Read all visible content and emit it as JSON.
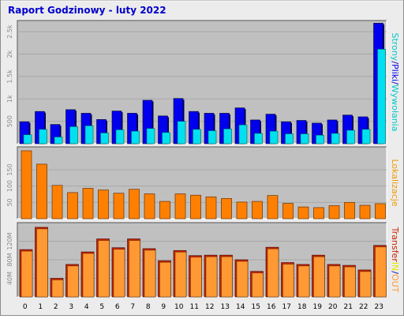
{
  "title": "Raport Godzinowy -  luty 2022",
  "colors": {
    "frame_bg": "#ececec",
    "plot_bg": "#c0c0c0",
    "title": "#0000cc",
    "strony": "#0000ee",
    "pliki": "#00e0f0",
    "wywolania": "#00c8c8",
    "lokalizacje": "#ff8000",
    "transfer": "#cc2200",
    "in": "#e8e800",
    "out": "#ff9933",
    "lokalizacje_label": "#ee9900"
  },
  "chart_data": [
    {
      "type": "bar",
      "name": "visits",
      "categories": [
        "0",
        "1",
        "2",
        "3",
        "4",
        "5",
        "6",
        "7",
        "8",
        "9",
        "10",
        "11",
        "12",
        "13",
        "14",
        "15",
        "16",
        "17",
        "18",
        "19",
        "20",
        "21",
        "22",
        "23"
      ],
      "ylim": [
        0,
        2750
      ],
      "y_ticks": [
        "500",
        "1k",
        "1.5k",
        "2k",
        "2.5k"
      ],
      "y_tick_values": [
        500,
        1000,
        1500,
        2000,
        2500
      ],
      "legend_parts": [
        {
          "text": "Strony",
          "color_key": "wywolania"
        },
        {
          "text": "/",
          "color_key": "title"
        },
        {
          "text": "Pliki",
          "color_key": "strony"
        },
        {
          "text": "/",
          "color_key": "title"
        },
        {
          "text": "Wywołania",
          "color_key": "wywolania"
        }
      ],
      "series": [
        {
          "name": "Strony",
          "values": [
            490,
            720,
            430,
            760,
            680,
            540,
            730,
            680,
            970,
            620,
            1010,
            720,
            680,
            680,
            800,
            530,
            660,
            490,
            520,
            460,
            530,
            640,
            600,
            2690
          ]
        },
        {
          "name": "Pliki",
          "values": [
            200,
            320,
            150,
            380,
            400,
            240,
            310,
            280,
            340,
            250,
            500,
            320,
            290,
            330,
            420,
            230,
            280,
            220,
            220,
            190,
            230,
            300,
            320,
            2110
          ]
        }
      ]
    },
    {
      "type": "bar",
      "name": "locations",
      "categories": [
        "0",
        "1",
        "2",
        "3",
        "4",
        "5",
        "6",
        "7",
        "8",
        "9",
        "10",
        "11",
        "12",
        "13",
        "14",
        "15",
        "16",
        "17",
        "18",
        "19",
        "20",
        "21",
        "22",
        "23"
      ],
      "ylim": [
        0,
        220
      ],
      "y_ticks": [
        "50",
        "100",
        "150"
      ],
      "y_tick_values": [
        50,
        100,
        150
      ],
      "legend": "Lokalizacje",
      "series": [
        {
          "name": "Lokalizacje",
          "values": [
            208,
            167,
            102,
            80,
            93,
            88,
            78,
            90,
            76,
            53,
            76,
            72,
            67,
            62,
            51,
            53,
            71,
            47,
            36,
            34,
            40,
            50,
            41,
            46
          ]
        }
      ]
    },
    {
      "type": "bar",
      "name": "transfer",
      "categories": [
        "0",
        "1",
        "2",
        "3",
        "4",
        "5",
        "6",
        "7",
        "8",
        "9",
        "10",
        "11",
        "12",
        "13",
        "14",
        "15",
        "16",
        "17",
        "18",
        "19",
        "20",
        "21",
        "22",
        "23"
      ],
      "ylim": [
        0,
        160
      ],
      "y_ticks": [
        "40M",
        "80M",
        "120M"
      ],
      "y_tick_values": [
        40,
        80,
        120
      ],
      "legend_parts": [
        {
          "text": "Transfer",
          "color_key": "transfer"
        },
        {
          "text": "IN",
          "color_key": "in"
        },
        {
          "text": "/",
          "color_key": "title"
        },
        {
          "text": "OUT",
          "color_key": "out"
        }
      ],
      "series": [
        {
          "name": "Transfer",
          "values": [
            102,
            150,
            40,
            70,
            97,
            125,
            106,
            125,
            104,
            78,
            100,
            89,
            90,
            90,
            80,
            55,
            107,
            74,
            70,
            90,
            70,
            68,
            58,
            111
          ]
        }
      ]
    }
  ]
}
